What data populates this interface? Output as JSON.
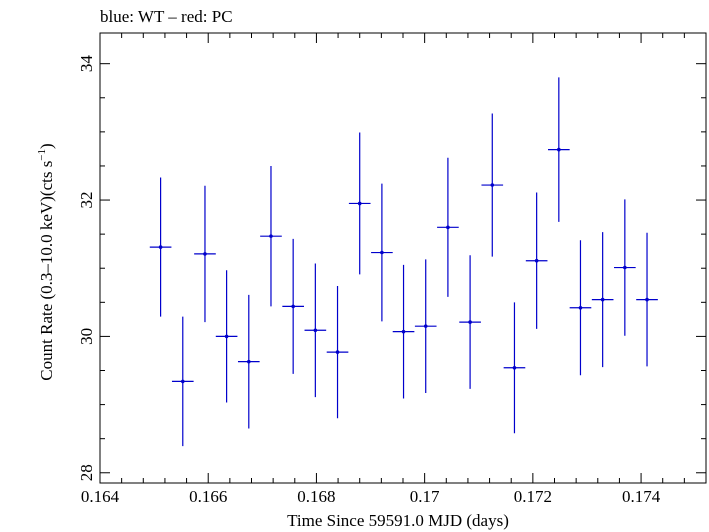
{
  "chart_data": {
    "type": "scatter",
    "title": "blue: WT – red: PC",
    "xlabel": "Time Since 59591.0 MJD (days)",
    "ylabel_main": "Count Rate (0.3–10.0 keV)(cts s",
    "ylabel_sup": "−1",
    "ylabel_end": ")",
    "xlim": [
      0.164,
      0.1752
    ],
    "ylim": [
      27.85,
      34.45
    ],
    "x_ticks": [
      {
        "value": 0.164,
        "label": "0.164"
      },
      {
        "value": 0.166,
        "label": "0.166"
      },
      {
        "value": 0.168,
        "label": "0.168"
      },
      {
        "value": 0.17,
        "label": "0.17"
      },
      {
        "value": 0.172,
        "label": "0.172"
      },
      {
        "value": 0.174,
        "label": "0.174"
      }
    ],
    "y_ticks": [
      {
        "value": 28,
        "label": "28"
      },
      {
        "value": 30,
        "label": "30"
      },
      {
        "value": 32,
        "label": "32"
      },
      {
        "value": 34,
        "label": "34"
      }
    ],
    "grid": false,
    "series": [
      {
        "name": "WT",
        "color": "#0000cc",
        "x_err": 0.0002,
        "points": [
          {
            "x": 0.16512,
            "y": 31.31,
            "yerr": 1.02
          },
          {
            "x": 0.16553,
            "y": 29.34,
            "yerr": 0.95
          },
          {
            "x": 0.16594,
            "y": 31.21,
            "yerr": 1.0
          },
          {
            "x": 0.16634,
            "y": 30.0,
            "yerr": 0.97
          },
          {
            "x": 0.16675,
            "y": 29.63,
            "yerr": 0.98
          },
          {
            "x": 0.16716,
            "y": 31.47,
            "yerr": 1.03
          },
          {
            "x": 0.16757,
            "y": 30.44,
            "yerr": 0.99
          },
          {
            "x": 0.16798,
            "y": 30.09,
            "yerr": 0.98
          },
          {
            "x": 0.16839,
            "y": 29.77,
            "yerr": 0.97
          },
          {
            "x": 0.1688,
            "y": 31.95,
            "yerr": 1.04
          },
          {
            "x": 0.16921,
            "y": 31.23,
            "yerr": 1.01
          },
          {
            "x": 0.16961,
            "y": 30.07,
            "yerr": 0.98
          },
          {
            "x": 0.17002,
            "y": 30.15,
            "yerr": 0.98
          },
          {
            "x": 0.17043,
            "y": 31.6,
            "yerr": 1.02
          },
          {
            "x": 0.17084,
            "y": 30.21,
            "yerr": 0.98
          },
          {
            "x": 0.17125,
            "y": 32.22,
            "yerr": 1.05
          },
          {
            "x": 0.17166,
            "y": 29.54,
            "yerr": 0.96
          },
          {
            "x": 0.17207,
            "y": 31.11,
            "yerr": 1.0
          },
          {
            "x": 0.17248,
            "y": 32.74,
            "yerr": 1.06
          },
          {
            "x": 0.17288,
            "y": 30.42,
            "yerr": 0.99
          },
          {
            "x": 0.17329,
            "y": 30.54,
            "yerr": 0.99
          },
          {
            "x": 0.1737,
            "y": 31.01,
            "yerr": 1.0
          },
          {
            "x": 0.17411,
            "y": 30.54,
            "yerr": 0.98
          }
        ]
      }
    ]
  }
}
